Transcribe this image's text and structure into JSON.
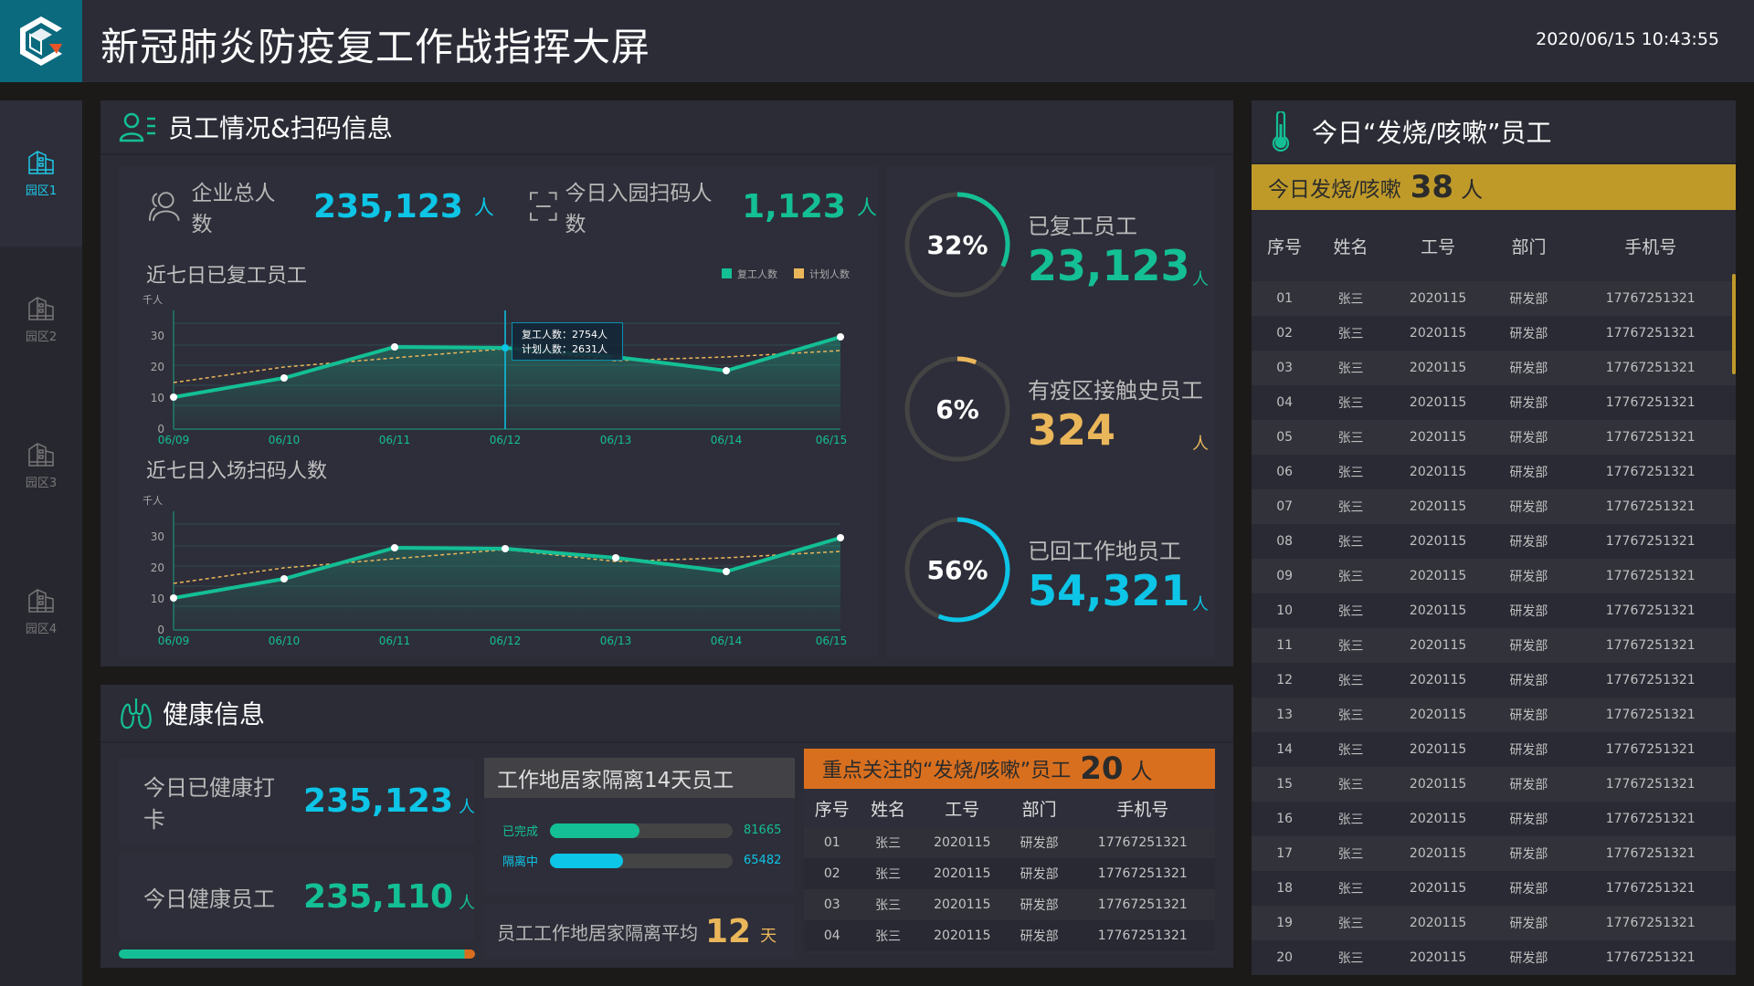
{
  "header": {
    "title": "新冠肺炎防疫复工作战指挥大屏",
    "datetime": "2020/06/15  10:43:55",
    "logo_icon": "cube-logo-icon"
  },
  "sidebar": {
    "items": [
      {
        "label": "园区1",
        "icon": "building-icon",
        "active": true
      },
      {
        "label": "园区2",
        "icon": "building-icon",
        "active": false
      },
      {
        "label": "园区3",
        "icon": "building-icon",
        "active": false
      },
      {
        "label": "园区4",
        "icon": "building-icon",
        "active": false
      }
    ]
  },
  "staff_panel": {
    "title": "员工情况&扫码信息",
    "total": {
      "label": "企业总人数",
      "value": "235,123",
      "unit": "人"
    },
    "scan_today": {
      "label": "今日入园扫码人数",
      "value": "1,123",
      "unit": "人"
    },
    "chart1_title": "近七日已复工员工",
    "chart2_title": "近七日入场扫码人数",
    "legend": {
      "actual": "复工人数",
      "plan": "计划人数"
    },
    "yunit": "千人",
    "tooltip": {
      "line1": "复工人数：2754人",
      "line2": "计划人数：2631人"
    },
    "rings": [
      {
        "pct": "32%",
        "label": "已复工员工",
        "value": "23,123",
        "unit": "人",
        "color": "#14bf95",
        "ratio": 0.32
      },
      {
        "pct": "6%",
        "label": "有疫区接触史员工",
        "value": "324",
        "unit": "人",
        "color": "#eab65a",
        "ratio": 0.06
      },
      {
        "pct": "56%",
        "label": "已回工作地员工",
        "value": "54,321",
        "unit": "人",
        "color": "#0dc5e6",
        "ratio": 0.56
      }
    ]
  },
  "chart_data": [
    {
      "type": "line",
      "title": "近七日已复工员工",
      "ylabel": "千人",
      "x": [
        "06/09",
        "06/10",
        "06/11",
        "06/12",
        "06/13",
        "06/14",
        "06/15"
      ],
      "series": [
        {
          "name": "复工人数",
          "values": [
            10.5,
            17,
            27.5,
            27,
            24,
            19,
            29.5
          ],
          "color": "#14bf95"
        },
        {
          "name": "计划人数",
          "values": [
            15,
            20,
            23,
            26,
            22,
            23,
            25
          ],
          "color": "#eab65a"
        }
      ],
      "ylim": [
        0,
        35
      ],
      "yticks": [
        0,
        10,
        20,
        30
      ],
      "legend_position": "top-right",
      "grid": true
    },
    {
      "type": "line",
      "title": "近七日入场扫码人数",
      "ylabel": "千人",
      "x": [
        "06/09",
        "06/10",
        "06/11",
        "06/12",
        "06/13",
        "06/14",
        "06/15"
      ],
      "series": [
        {
          "name": "复工人数",
          "values": [
            10.5,
            17,
            27.5,
            27,
            24,
            19,
            29.5
          ],
          "color": "#14bf95"
        },
        {
          "name": "计划人数",
          "values": [
            15,
            20,
            23,
            26,
            22,
            23,
            25
          ],
          "color": "#eab65a"
        }
      ],
      "ylim": [
        0,
        35
      ],
      "yticks": [
        0,
        10,
        20,
        30
      ],
      "grid": true
    }
  ],
  "health_panel": {
    "title": "健康信息",
    "checkin": {
      "label": "今日已健康打卡",
      "value": "235,123",
      "unit": "人"
    },
    "healthy": {
      "label": "今日健康员工",
      "value": "235,110",
      "unit": "人"
    },
    "quarantine_title": "工作地居家隔离14天员工",
    "bars": [
      {
        "label": "已完成",
        "value": "81665",
        "ratio": 0.49,
        "color": "#14bf95"
      },
      {
        "label": "隔离中",
        "value": "65482",
        "ratio": 0.4,
        "color": "#0dc5e6"
      }
    ],
    "avg": {
      "label": "员工工作地居家隔离平均",
      "value": "12",
      "unit": "天"
    },
    "focus": {
      "title": "重点关注的“发烧/咳嗽”员工",
      "count": "20",
      "unit": "人",
      "columns": [
        "序号",
        "姓名",
        "工号",
        "部门",
        "手机号"
      ],
      "rows": [
        [
          "01",
          "张三",
          "2020115",
          "研发部",
          "17767251321"
        ],
        [
          "02",
          "张三",
          "2020115",
          "研发部",
          "17767251321"
        ],
        [
          "03",
          "张三",
          "2020115",
          "研发部",
          "17767251321"
        ],
        [
          "04",
          "张三",
          "2020115",
          "研发部",
          "17767251321"
        ]
      ]
    }
  },
  "fever_panel": {
    "title": "今日“发烧/咳嗽”员工",
    "banner_label": "今日发烧/咳嗽",
    "banner_count": "38",
    "banner_unit": "人",
    "columns": [
      "序号",
      "姓名",
      "工号",
      "部门",
      "手机号"
    ],
    "rows": [
      [
        "01",
        "张三",
        "2020115",
        "研发部",
        "17767251321"
      ],
      [
        "02",
        "张三",
        "2020115",
        "研发部",
        "17767251321"
      ],
      [
        "03",
        "张三",
        "2020115",
        "研发部",
        "17767251321"
      ],
      [
        "04",
        "张三",
        "2020115",
        "研发部",
        "17767251321"
      ],
      [
        "05",
        "张三",
        "2020115",
        "研发部",
        "17767251321"
      ],
      [
        "06",
        "张三",
        "2020115",
        "研发部",
        "17767251321"
      ],
      [
        "07",
        "张三",
        "2020115",
        "研发部",
        "17767251321"
      ],
      [
        "08",
        "张三",
        "2020115",
        "研发部",
        "17767251321"
      ],
      [
        "09",
        "张三",
        "2020115",
        "研发部",
        "17767251321"
      ],
      [
        "10",
        "张三",
        "2020115",
        "研发部",
        "17767251321"
      ],
      [
        "11",
        "张三",
        "2020115",
        "研发部",
        "17767251321"
      ],
      [
        "12",
        "张三",
        "2020115",
        "研发部",
        "17767251321"
      ],
      [
        "13",
        "张三",
        "2020115",
        "研发部",
        "17767251321"
      ],
      [
        "14",
        "张三",
        "2020115",
        "研发部",
        "17767251321"
      ],
      [
        "15",
        "张三",
        "2020115",
        "研发部",
        "17767251321"
      ],
      [
        "16",
        "张三",
        "2020115",
        "研发部",
        "17767251321"
      ],
      [
        "17",
        "张三",
        "2020115",
        "研发部",
        "17767251321"
      ],
      [
        "18",
        "张三",
        "2020115",
        "研发部",
        "17767251321"
      ],
      [
        "19",
        "张三",
        "2020115",
        "研发部",
        "17767251321"
      ],
      [
        "20",
        "张三",
        "2020115",
        "研发部",
        "17767251321"
      ]
    ]
  },
  "colors": {
    "teal": "#14bf95",
    "cyan": "#0dc5e6",
    "gold": "#eab65a",
    "banner_gold": "#bf9a29",
    "banner_orange": "#d86f1f",
    "logo_bg": "#0b6a7e"
  }
}
